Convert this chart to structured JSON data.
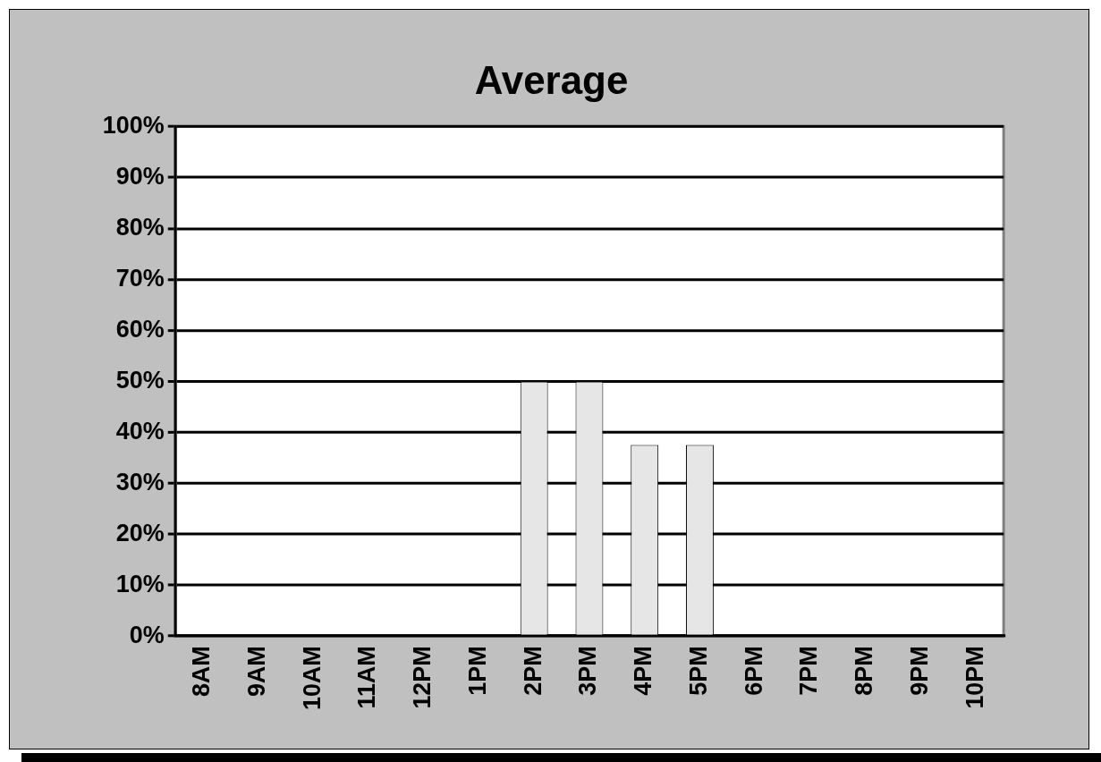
{
  "chart_data": {
    "type": "bar",
    "title": "Average",
    "categories": [
      "8AM",
      "9AM",
      "10AM",
      "11AM",
      "12PM",
      "1PM",
      "2PM",
      "3PM",
      "4PM",
      "5PM",
      "6PM",
      "7PM",
      "8PM",
      "9PM",
      "10PM"
    ],
    "values": [
      0,
      0,
      0,
      0,
      0,
      0,
      50,
      50,
      37.5,
      37.5,
      0,
      0,
      0,
      0,
      0
    ],
    "color": "#e6e6e6",
    "ylim": [
      0,
      100
    ],
    "yticks": [
      {
        "value": 0,
        "label": "0%"
      },
      {
        "value": 10,
        "label": "10%"
      },
      {
        "value": 20,
        "label": "20%"
      },
      {
        "value": 30,
        "label": "30%"
      },
      {
        "value": 40,
        "label": "40%"
      },
      {
        "value": 50,
        "label": "50%"
      },
      {
        "value": 60,
        "label": "60%"
      },
      {
        "value": 70,
        "label": "70%"
      },
      {
        "value": 80,
        "label": "80%"
      },
      {
        "value": 90,
        "label": "90%"
      },
      {
        "value": 100,
        "label": "100%"
      }
    ],
    "grid": "y",
    "legend": false
  }
}
